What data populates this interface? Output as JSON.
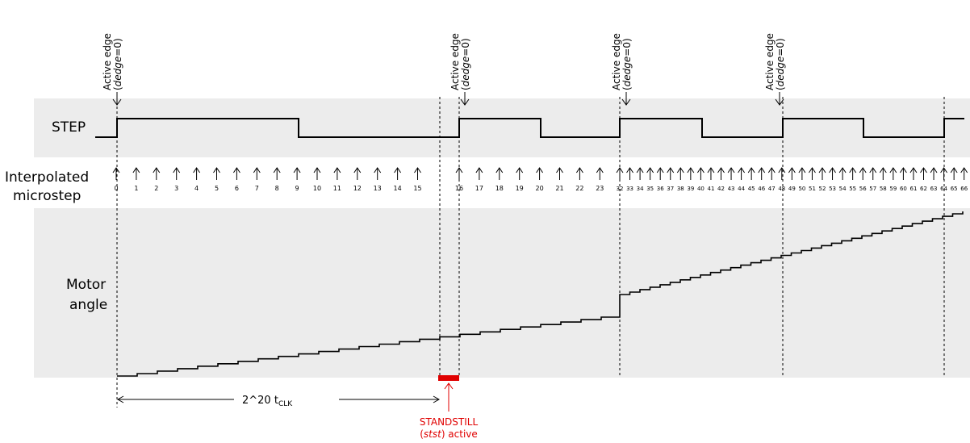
{
  "signals": {
    "step": "STEP",
    "microstep": [
      "Interpolated",
      "microstep"
    ],
    "motor": [
      "Motor",
      "angle"
    ]
  },
  "active_edge": {
    "title": "Active edge",
    "note": [
      "(",
      "dedge",
      "=0)"
    ]
  },
  "microsteps": [
    0,
    1,
    2,
    3,
    4,
    5,
    6,
    7,
    8,
    9,
    10,
    11,
    12,
    13,
    14,
    15,
    16,
    17,
    18,
    19,
    20,
    21,
    22,
    23,
    32,
    33,
    34,
    35,
    36,
    37,
    38,
    39,
    40,
    41,
    42,
    43,
    44,
    45,
    46,
    47,
    48,
    49,
    50,
    51,
    52,
    53,
    54,
    55,
    56,
    57,
    58,
    59,
    60,
    61,
    62,
    63,
    64,
    65,
    66
  ],
  "timeout": [
    "2^20 t",
    "CLK"
  ],
  "standstill": {
    "title": "STANDSTILL",
    "note": [
      "(",
      "stst",
      ") active"
    ]
  }
}
